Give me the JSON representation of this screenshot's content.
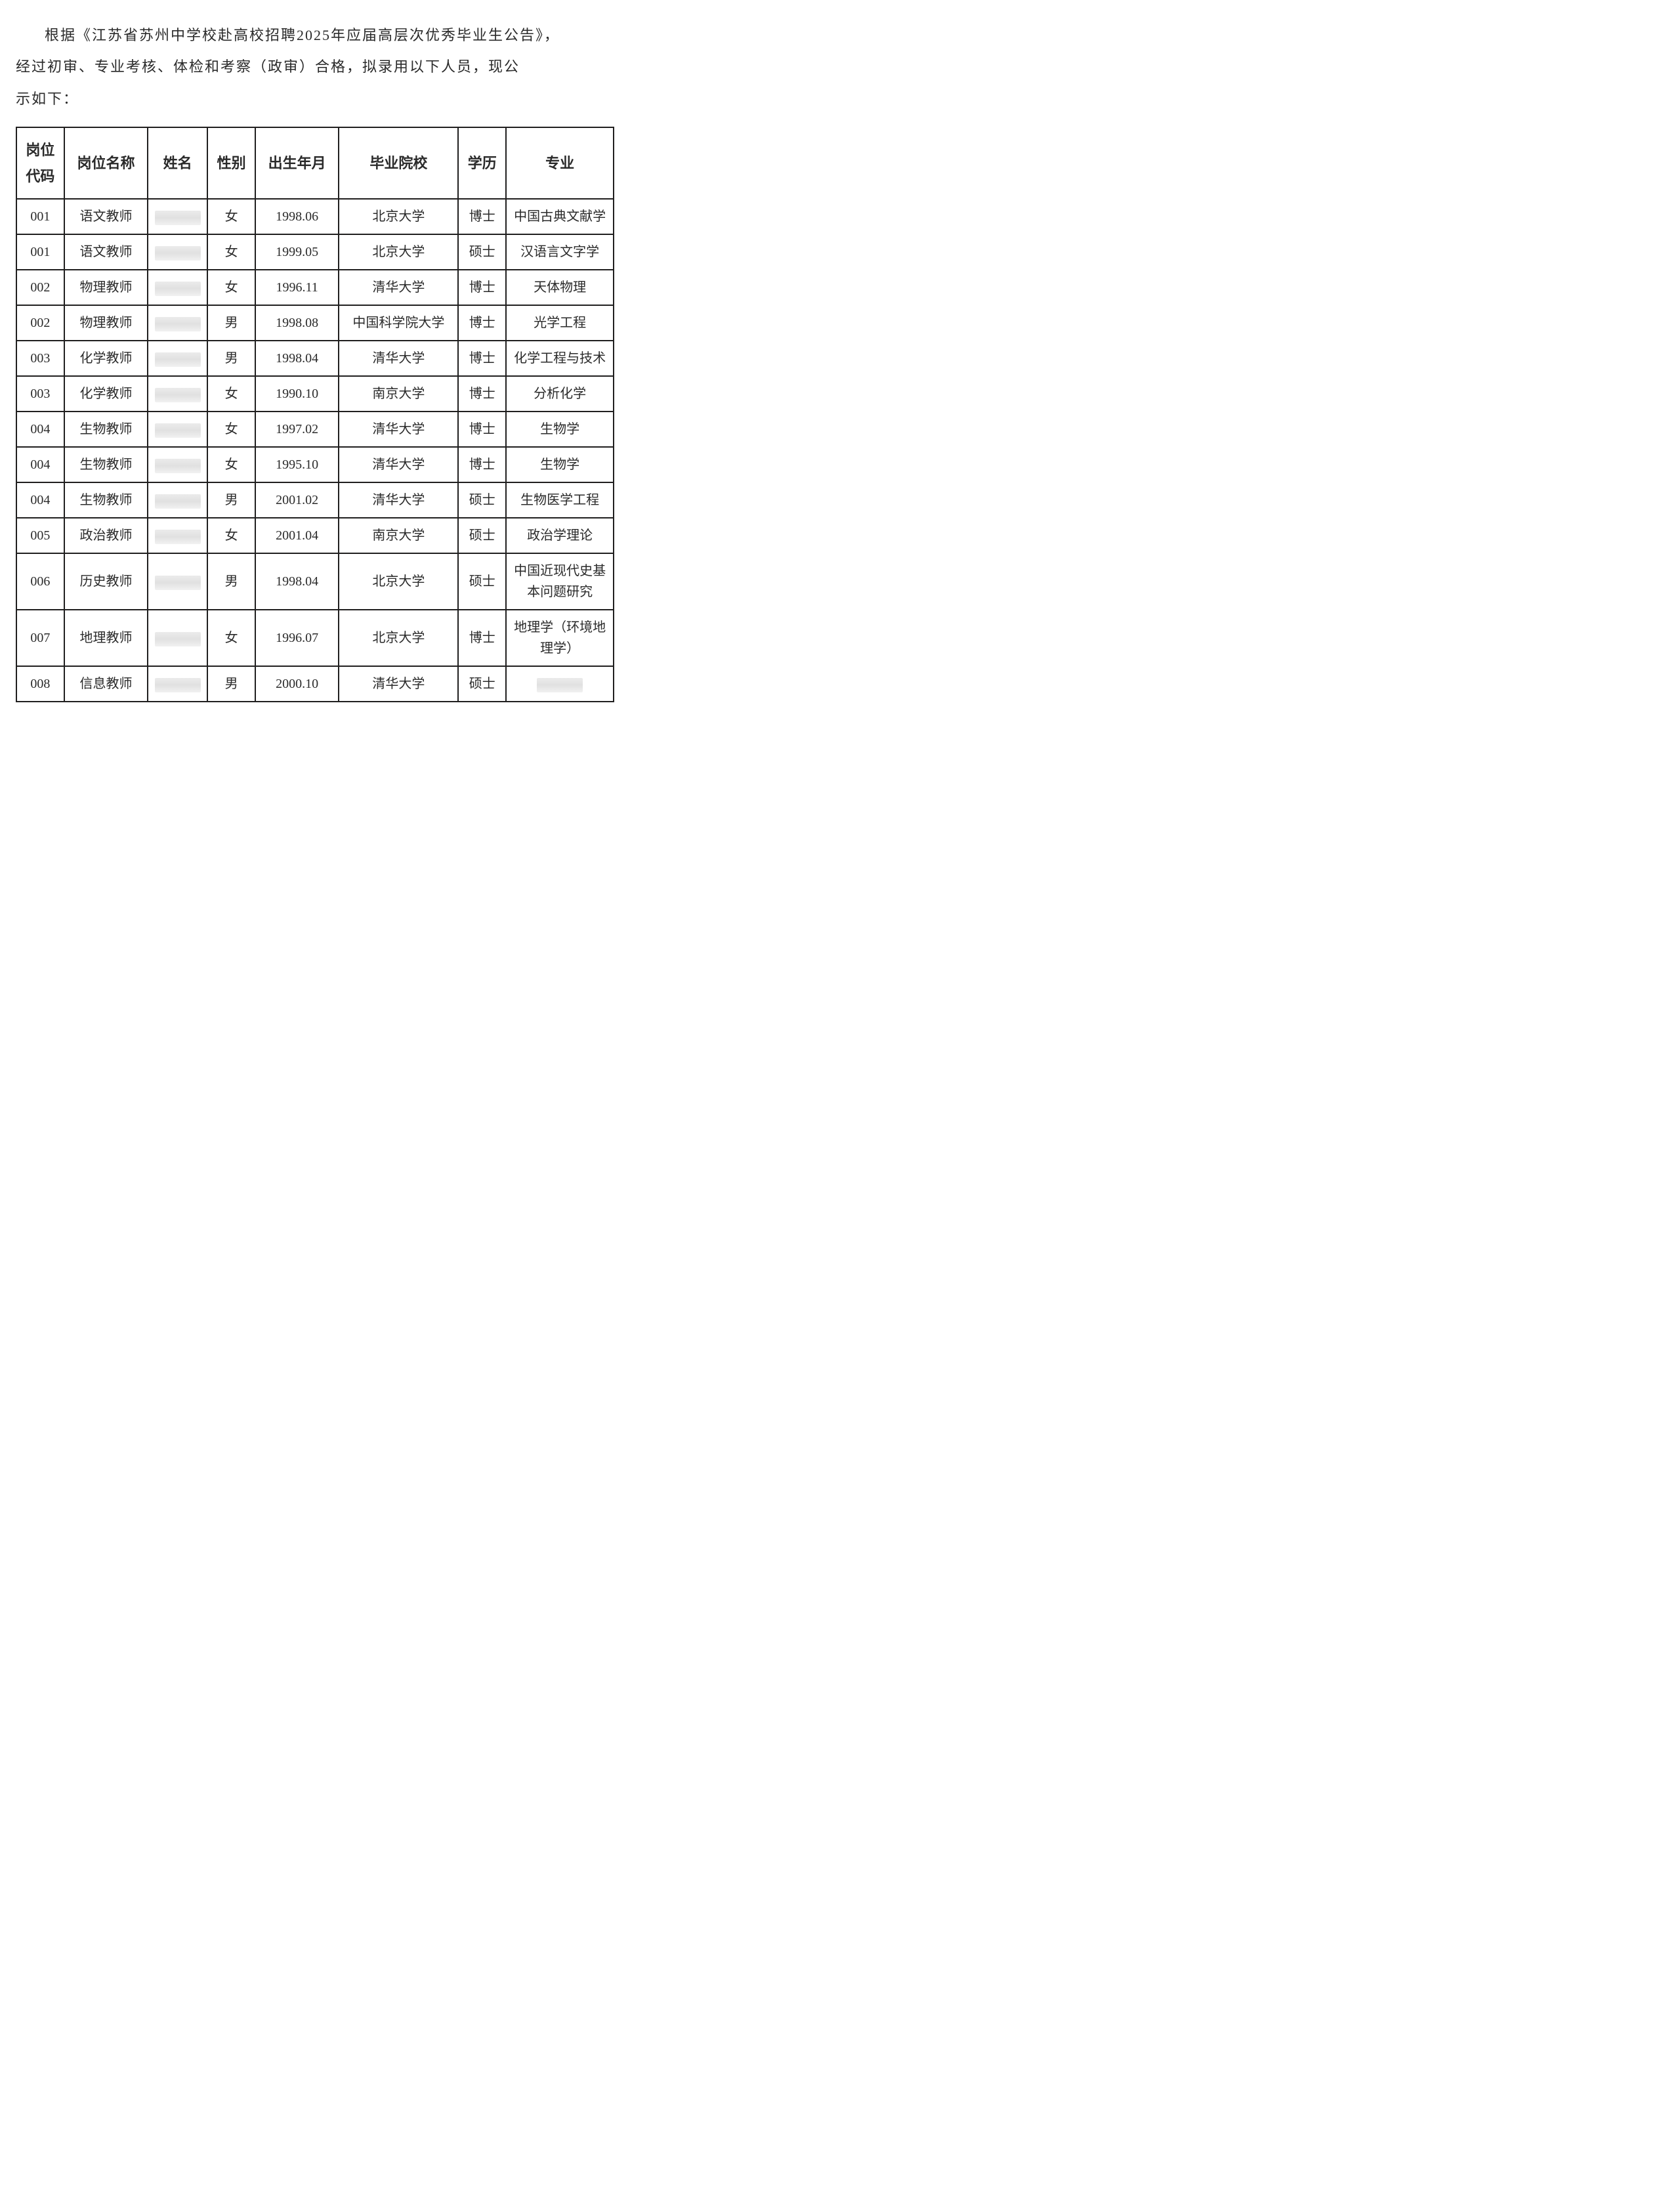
{
  "intro": {
    "line1": "根据《江苏省苏州中学校赴高校招聘2025年应届高层次优秀毕业生公告》，",
    "line2": "经过初审、专业考核、体检和考察（政审）合格，拟录用以下人员，现公",
    "line3": "示如下："
  },
  "table": {
    "columns": [
      "岗位代码",
      "岗位名称",
      "姓名",
      "性别",
      "出生年月",
      "毕业院校",
      "学历",
      "专业"
    ],
    "column_widths_pct": [
      8,
      14,
      10,
      8,
      14,
      20,
      8,
      18
    ],
    "border_color": "#201f1f",
    "text_color": "#2a2a2a",
    "background_color": "#ffffff",
    "header_fontsize_pt": 16,
    "cell_fontsize_pt": 15,
    "rows": [
      {
        "code": "001",
        "post": "语文教师",
        "name_redacted": true,
        "gender": "女",
        "dob": "1998.06",
        "school": "北京大学",
        "degree": "博士",
        "major": "中国古典文献学"
      },
      {
        "code": "001",
        "post": "语文教师",
        "name_redacted": true,
        "gender": "女",
        "dob": "1999.05",
        "school": "北京大学",
        "degree": "硕士",
        "major": "汉语言文字学"
      },
      {
        "code": "002",
        "post": "物理教师",
        "name_redacted": true,
        "gender": "女",
        "dob": "1996.11",
        "school": "清华大学",
        "degree": "博士",
        "major": "天体物理"
      },
      {
        "code": "002",
        "post": "物理教师",
        "name_redacted": true,
        "gender": "男",
        "dob": "1998.08",
        "school": "中国科学院大学",
        "degree": "博士",
        "major": "光学工程"
      },
      {
        "code": "003",
        "post": "化学教师",
        "name_redacted": true,
        "gender": "男",
        "dob": "1998.04",
        "school": "清华大学",
        "degree": "博士",
        "major": "化学工程与技术"
      },
      {
        "code": "003",
        "post": "化学教师",
        "name_redacted": true,
        "gender": "女",
        "dob": "1990.10",
        "school": "南京大学",
        "degree": "博士",
        "major": "分析化学"
      },
      {
        "code": "004",
        "post": "生物教师",
        "name_redacted": true,
        "gender": "女",
        "dob": "1997.02",
        "school": "清华大学",
        "degree": "博士",
        "major": "生物学"
      },
      {
        "code": "004",
        "post": "生物教师",
        "name_redacted": true,
        "gender": "女",
        "dob": "1995.10",
        "school": "清华大学",
        "degree": "博士",
        "major": "生物学"
      },
      {
        "code": "004",
        "post": "生物教师",
        "name_redacted": true,
        "gender": "男",
        "dob": "2001.02",
        "school": "清华大学",
        "degree": "硕士",
        "major": "生物医学工程"
      },
      {
        "code": "005",
        "post": "政治教师",
        "name_redacted": true,
        "gender": "女",
        "dob": "2001.04",
        "school": "南京大学",
        "degree": "硕士",
        "major": "政治学理论"
      },
      {
        "code": "006",
        "post": "历史教师",
        "name_redacted": true,
        "gender": "男",
        "dob": "1998.04",
        "school": "北京大学",
        "degree": "硕士",
        "major": "中国近现代史基本问题研究"
      },
      {
        "code": "007",
        "post": "地理教师",
        "name_redacted": true,
        "gender": "女",
        "dob": "1996.07",
        "school": "北京大学",
        "degree": "博士",
        "major": "地理学（环境地理学）"
      },
      {
        "code": "008",
        "post": "信息教师",
        "name_redacted": true,
        "gender": "男",
        "dob": "2000.10",
        "school": "清华大学",
        "degree": "硕士",
        "major": "",
        "major_redacted": true
      }
    ]
  }
}
